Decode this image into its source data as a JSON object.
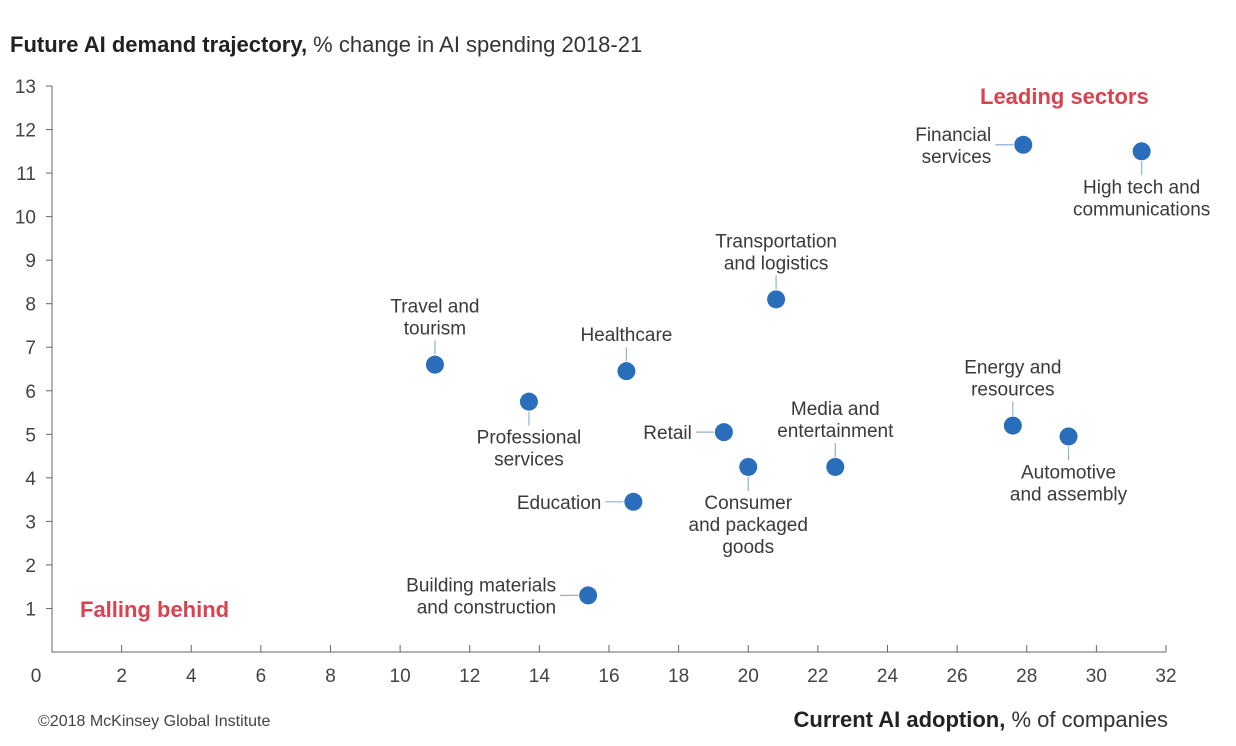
{
  "title": {
    "bold": "Future AI demand trajectory,",
    "rest": " % change in AI spending 2018-21"
  },
  "xtitle": {
    "bold": "Current AI adoption,",
    "rest": " % of companies"
  },
  "credit": "©2018  McKinsey Global Institute",
  "zones": {
    "leading": "Leading sectors",
    "falling": "Falling behind"
  },
  "colors": {
    "point": "#2a6ebb",
    "zone": "#d9434f",
    "axis": "#666666",
    "leader": "#8fb2d8"
  },
  "chart_data": {
    "type": "scatter",
    "xlabel": "Current AI adoption, % of companies",
    "ylabel": "Future AI demand trajectory, % change in AI spending 2018-21",
    "xlim": [
      0,
      32
    ],
    "ylim": [
      0,
      13
    ],
    "xticks": [
      0,
      2,
      4,
      6,
      8,
      10,
      12,
      14,
      16,
      18,
      20,
      22,
      24,
      26,
      28,
      30,
      32
    ],
    "yticks": [
      1,
      2,
      3,
      4,
      5,
      6,
      7,
      8,
      9,
      10,
      11,
      12,
      13
    ],
    "grid": false,
    "points": [
      {
        "label": [
          "Financial",
          "services"
        ],
        "x": 27.9,
        "y": 11.65,
        "label_side": "left"
      },
      {
        "label": [
          "High tech and",
          "communications"
        ],
        "x": 31.3,
        "y": 11.5,
        "label_side": "below"
      },
      {
        "label": [
          "Transportation",
          "and logistics"
        ],
        "x": 20.8,
        "y": 8.1,
        "label_side": "above"
      },
      {
        "label": [
          "Travel and",
          "tourism"
        ],
        "x": 11.0,
        "y": 6.6,
        "label_side": "above"
      },
      {
        "label": [
          "Healthcare"
        ],
        "x": 16.5,
        "y": 6.45,
        "label_side": "above"
      },
      {
        "label": [
          "Professional",
          "services"
        ],
        "x": 13.7,
        "y": 5.75,
        "label_side": "below"
      },
      {
        "label": [
          "Retail"
        ],
        "x": 19.3,
        "y": 5.05,
        "label_side": "left"
      },
      {
        "label": [
          "Energy and",
          "resources"
        ],
        "x": 27.6,
        "y": 5.2,
        "label_side": "above"
      },
      {
        "label": [
          "Automotive",
          "and assembly"
        ],
        "x": 29.2,
        "y": 4.95,
        "label_side": "below"
      },
      {
        "label": [
          "Media and",
          "entertainment"
        ],
        "x": 22.5,
        "y": 4.25,
        "label_side": "above"
      },
      {
        "label": [
          "Consumer",
          "and packaged",
          "goods"
        ],
        "x": 20.0,
        "y": 4.25,
        "label_side": "below"
      },
      {
        "label": [
          "Education"
        ],
        "x": 16.7,
        "y": 3.45,
        "label_side": "left"
      },
      {
        "label": [
          "Building materials",
          "and construction"
        ],
        "x": 15.4,
        "y": 1.3,
        "label_side": "left"
      }
    ]
  }
}
